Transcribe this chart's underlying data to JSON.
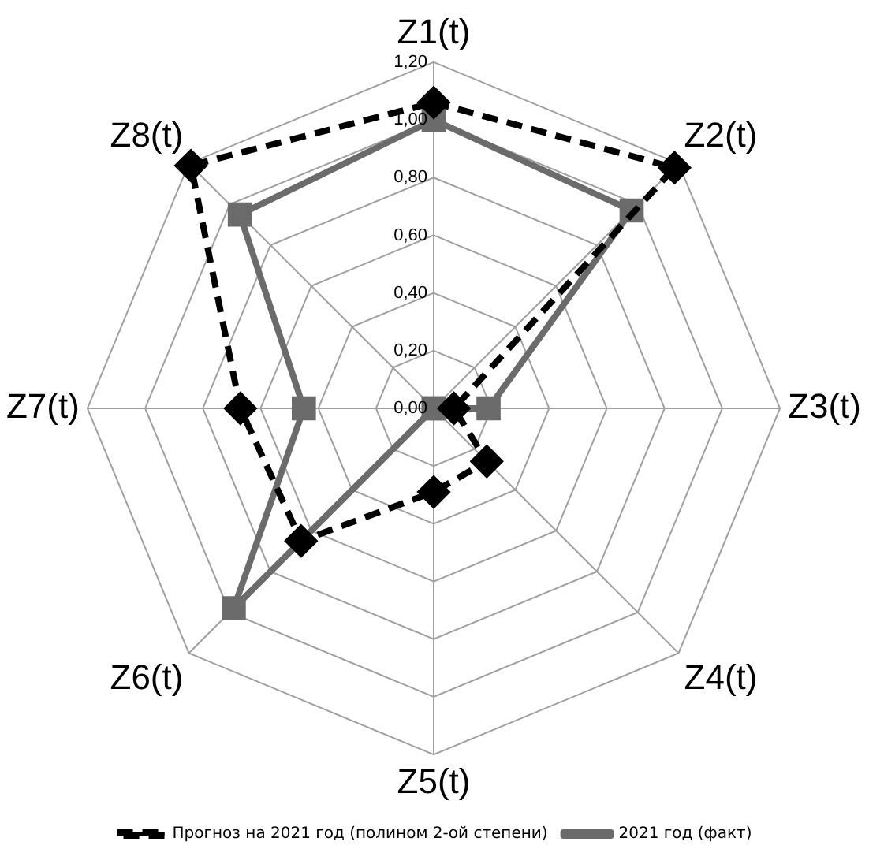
{
  "chart_data": {
    "type": "radar",
    "categories": [
      "Z1(t)",
      "Z2(t)",
      "Z3(t)",
      "Z4(t)",
      "Z5(t)",
      "Z6(t)",
      "Z7(t)",
      "Z8(t)"
    ],
    "series": [
      {
        "name": "Прогноз на 2021 год (полином 2-ой степени)",
        "color": "#000000",
        "values": [
          1.06,
          1.18,
          0.07,
          0.26,
          0.29,
          0.65,
          0.67,
          1.19
        ],
        "marker": "diamond",
        "line_style": "dashed"
      },
      {
        "name": "2021 год (факт)",
        "color": "#6b6b6b",
        "values": [
          1.0,
          0.97,
          0.19,
          0.0,
          0.0,
          0.98,
          0.45,
          0.95
        ],
        "marker": "square",
        "line_style": "solid"
      }
    ],
    "ylim": [
      0,
      1.2
    ],
    "yticks": [
      {
        "value": 0,
        "label": "0,00"
      },
      {
        "value": 0.2,
        "label": "0,20"
      },
      {
        "value": 0.4,
        "label": "0,40"
      },
      {
        "value": 0.6,
        "label": "0,60"
      },
      {
        "value": 0.8,
        "label": "0,80"
      },
      {
        "value": 1,
        "label": "1,00"
      },
      {
        "value": 1.2,
        "label": "1,20"
      }
    ],
    "grid": true,
    "legend": "bottom"
  }
}
